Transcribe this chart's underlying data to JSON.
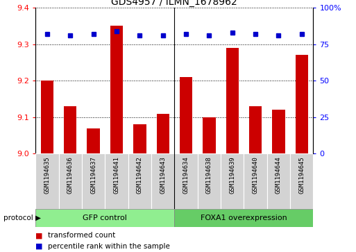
{
  "title": "GDS4957 / ILMN_1678962",
  "samples": [
    "GSM1194635",
    "GSM1194636",
    "GSM1194637",
    "GSM1194641",
    "GSM1194642",
    "GSM1194643",
    "GSM1194634",
    "GSM1194638",
    "GSM1194639",
    "GSM1194640",
    "GSM1194644",
    "GSM1194645"
  ],
  "transformed_count": [
    9.2,
    9.13,
    9.07,
    9.35,
    9.08,
    9.11,
    9.21,
    9.1,
    9.29,
    9.13,
    9.12,
    9.27
  ],
  "percentile_rank": [
    82,
    81,
    82,
    84,
    81,
    81,
    82,
    81,
    83,
    82,
    81,
    82
  ],
  "ylim_left": [
    9.0,
    9.4
  ],
  "ylim_right": [
    0,
    100
  ],
  "yticks_left": [
    9.0,
    9.1,
    9.2,
    9.3,
    9.4
  ],
  "yticks_right": [
    0,
    25,
    50,
    75,
    100
  ],
  "bar_color": "#cc0000",
  "dot_color": "#0000cc",
  "group1_label": "GFP control",
  "group1_count": 6,
  "group2_label": "FOXA1 overexpression",
  "group2_count": 6,
  "group1_color": "#90ee90",
  "group2_color": "#66cc66",
  "sample_box_color": "#d3d3d3",
  "protocol_label": "protocol",
  "legend_bar": "transformed count",
  "legend_dot": "percentile rank within the sample",
  "plot_bg": "#ffffff"
}
